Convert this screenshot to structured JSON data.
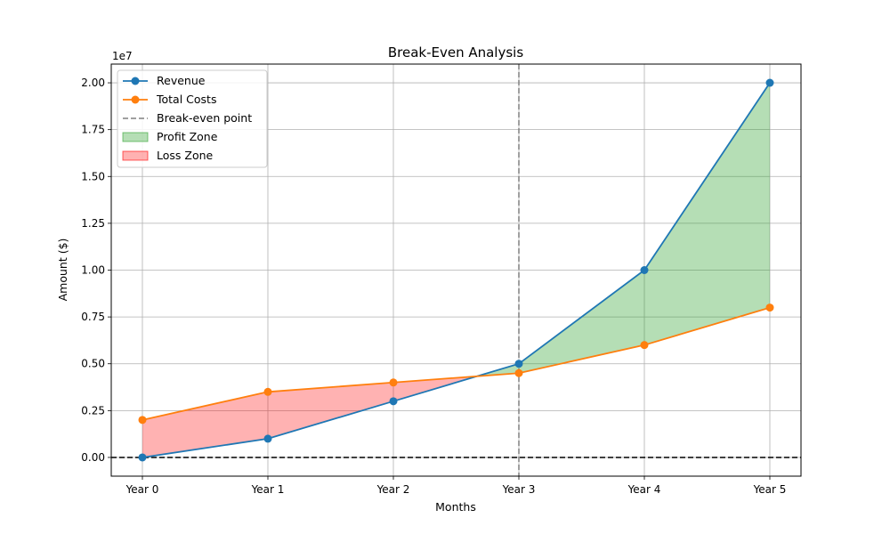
{
  "chart_data": {
    "type": "line",
    "title": "Break-Even Analysis",
    "xlabel": "Months",
    "ylabel": "Amount ($)",
    "y_offset_label": "1e7",
    "categories": [
      "Year 0",
      "Year 1",
      "Year 2",
      "Year 3",
      "Year 4",
      "Year 5"
    ],
    "series": [
      {
        "name": "Revenue",
        "color": "#1f77b4",
        "values": [
          0,
          1000000,
          3000000,
          5000000,
          10000000,
          20000000
        ]
      },
      {
        "name": "Total Costs",
        "color": "#ff7f0e",
        "values": [
          2000000,
          3500000,
          4000000,
          4500000,
          6000000,
          8000000
        ]
      }
    ],
    "break_even": {
      "name": "Break-even point",
      "category": "Year 3",
      "color": "#808080"
    },
    "zero_line": {
      "value": 0,
      "color": "#000000"
    },
    "zones": [
      {
        "name": "Profit Zone",
        "color": "#2ca02c",
        "opacity": 0.35
      },
      {
        "name": "Loss Zone",
        "color": "#ff0000",
        "opacity": 0.3
      }
    ],
    "ylim": [
      -1000000,
      21000000
    ],
    "yticks": [
      0,
      2500000,
      5000000,
      7500000,
      10000000,
      12500000,
      15000000,
      17500000,
      20000000
    ],
    "ytick_labels": [
      "0.00",
      "0.25",
      "0.50",
      "0.75",
      "1.00",
      "1.25",
      "1.50",
      "1.75",
      "2.00"
    ],
    "grid": true,
    "legend_position": "top-left"
  }
}
